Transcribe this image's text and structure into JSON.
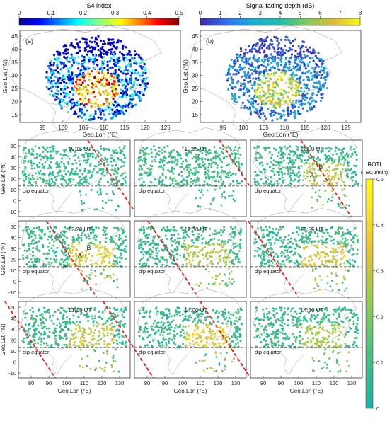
{
  "colors": {
    "jet": [
      "#00008f",
      "#0000ff",
      "#0080ff",
      "#00ffff",
      "#80ff80",
      "#ffff00",
      "#ff8000",
      "#ff0000",
      "#800000"
    ],
    "parula": [
      "#3e26a8",
      "#2e73f4",
      "#15aed4",
      "#1fbfa6",
      "#81cc59",
      "#dcb937",
      "#f9fb15"
    ],
    "roti_scale": [
      "#1ab3a6",
      "#4fbf7f",
      "#9ecb4f",
      "#e6c33a",
      "#fbe52c",
      "#f9fb15"
    ],
    "map_land": "#ffffff",
    "map_outline": "#9a9a9a",
    "equator": "#555555",
    "terminator": "#e8231c"
  },
  "s4": {
    "colorbar_title": "S4 index",
    "colorbar_ticks": [
      "0",
      "0.1",
      "0.2",
      "0.3",
      "0.4",
      "0.5"
    ],
    "panel_label": "(a)"
  },
  "fading": {
    "colorbar_title": "Signal fading depth (dB)",
    "colorbar_ticks": [
      "0",
      "1",
      "2",
      "3",
      "4",
      "5",
      "6",
      "7",
      "8"
    ],
    "panel_label": "(b)"
  },
  "top_axes": {
    "xlabel": "Geo.Lon (°E)",
    "ylabel": "Geo.Lat (°N)",
    "xticks": [
      "95",
      "100",
      "105",
      "110",
      "115",
      "120",
      "125"
    ],
    "yticks": [
      "45",
      "40",
      "35",
      "30",
      "25",
      "20",
      "15"
    ]
  },
  "roti_axes": {
    "xlabel": "Geo.Lon (°E)",
    "ylabel": "Geo.Lat (°N)",
    "xticks": [
      "80",
      "90",
      "100",
      "110",
      "120",
      "130"
    ],
    "yticks": [
      "50",
      "40",
      "30",
      "20",
      "10",
      "0",
      "-10"
    ],
    "dip_label": "dip equator"
  },
  "roti_colorbar": {
    "title": "ROTI",
    "unit": "(TECu/min)",
    "ticks": [
      "0.5",
      "0.4",
      "0.3",
      "0.2",
      "0.1",
      "0"
    ]
  },
  "panels": [
    {
      "time": "10:15 UT",
      "markers": []
    },
    {
      "time": "10:35 UT",
      "markers": []
    },
    {
      "time": "12:00 UT",
      "markers": [
        "B",
        "A"
      ]
    },
    {
      "time": "12:20 UT",
      "markers": [
        "B",
        "A",
        "C"
      ]
    },
    {
      "time": "12:30 UT",
      "markers": []
    },
    {
      "time": "12:55 UT",
      "markers": []
    },
    {
      "time": "13:15 UT",
      "markers": []
    },
    {
      "time": "14:00 UT",
      "markers": []
    },
    {
      "time": "14:30 UT",
      "markers": []
    }
  ],
  "chart_data": [
    {
      "type": "scatter",
      "title": "S4 index",
      "xlabel": "Geo.Lon (°E)",
      "ylabel": "Geo.Lat (°N)",
      "xlim": [
        90,
        130
      ],
      "ylim": [
        12,
        48
      ],
      "color_range": [
        0,
        0.5
      ],
      "panel": "(a)"
    },
    {
      "type": "scatter",
      "title": "Signal fading depth (dB)",
      "xlabel": "Geo.Lon (°E)",
      "ylabel": "Geo.Lat (°N)",
      "xlim": [
        90,
        130
      ],
      "ylim": [
        12,
        48
      ],
      "color_range": [
        0,
        8
      ],
      "panel": "(b)"
    },
    {
      "type": "scatter",
      "title": "ROTI (TECu/min)",
      "xlabel": "Geo.Lon (°E)",
      "ylabel": "Geo.Lat (°N)",
      "xlim": [
        70,
        140
      ],
      "ylim": [
        -18,
        55
      ],
      "color_range": [
        0,
        0.5
      ],
      "dip_equator_lat": 8,
      "panels": [
        "10:15 UT",
        "10:35 UT",
        "12:00 UT",
        "12:20 UT",
        "12:30 UT",
        "12:55 UT",
        "13:15 UT",
        "14:00 UT",
        "14:30 UT"
      ]
    }
  ]
}
